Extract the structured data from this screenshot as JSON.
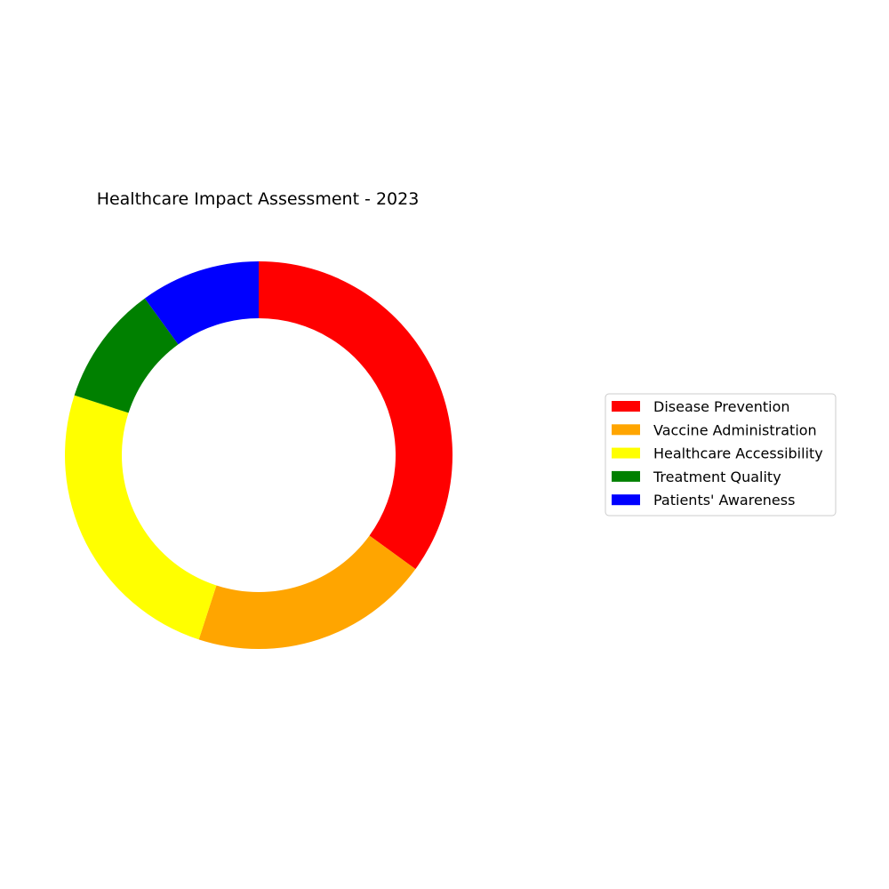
{
  "chart_data": {
    "type": "pie",
    "style": "donut",
    "title": "Healthcare Impact Assessment - 2023",
    "categories": [
      "Disease Prevention",
      "Vaccine Administration",
      "Healthcare Accessibility",
      "Treatment Quality",
      "Patients' Awareness"
    ],
    "values": [
      35,
      20,
      25,
      10,
      10
    ],
    "colors": [
      "#ff0000",
      "#ffa500",
      "#ffff00",
      "#008000",
      "#0000ff"
    ],
    "start_angle": "12 o'clock",
    "direction": "clockwise",
    "legend": {
      "placement": "right"
    }
  }
}
